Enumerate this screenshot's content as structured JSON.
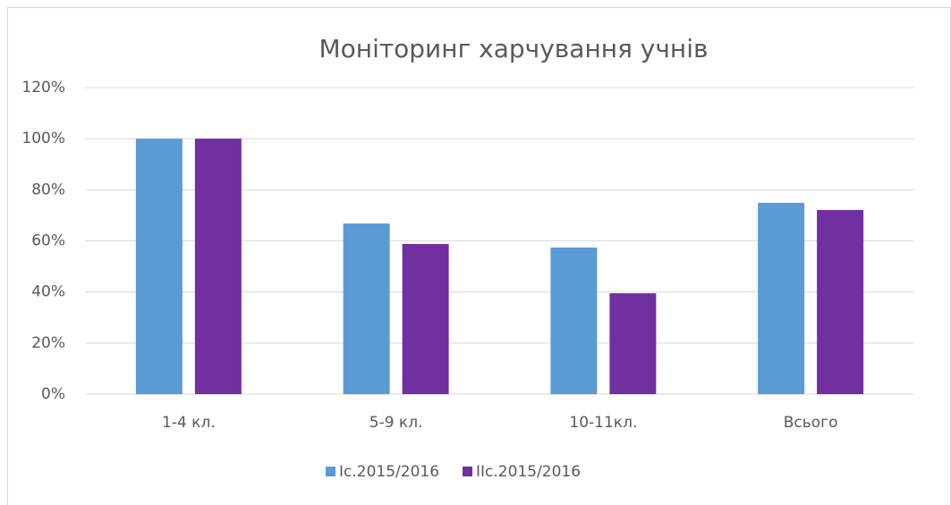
{
  "chart_data": {
    "type": "bar",
    "title": "Моніторинг харчування учнів",
    "categories": [
      "1-4 кл.",
      "5-9 кл.",
      "10-11кл.",
      "Всього"
    ],
    "series": [
      {
        "name": "Іс.2015/2016",
        "color": "#5b9bd5",
        "values": [
          100,
          66.8,
          57.4,
          74.9
        ]
      },
      {
        "name": "ІІс.2015/2016",
        "color": "#7030a0",
        "values": [
          100,
          58.8,
          39.5,
          72.1
        ]
      }
    ],
    "ylim": [
      0,
      120
    ],
    "yticks": [
      {
        "value": 0,
        "label": "0%"
      },
      {
        "value": 20,
        "label": "20%"
      },
      {
        "value": 40,
        "label": "40%"
      },
      {
        "value": 60,
        "label": "60%"
      },
      {
        "value": 80,
        "label": "80%"
      },
      {
        "value": 100,
        "label": "100%"
      },
      {
        "value": 120,
        "label": "120%"
      }
    ],
    "grid": true,
    "legend": "bottom"
  }
}
